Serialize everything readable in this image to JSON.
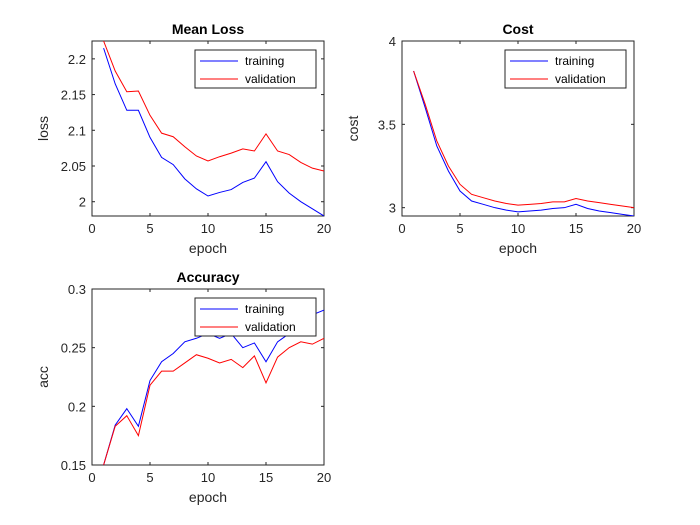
{
  "chart_data": [
    {
      "type": "line",
      "title": "Mean Loss",
      "xlabel": "epoch",
      "ylabel": "loss",
      "xlim": [
        0,
        20
      ],
      "ylim": [
        1.98,
        2.225
      ],
      "xticks": [
        0,
        5,
        10,
        15,
        20
      ],
      "yticks": [
        2,
        2.05,
        2.1,
        2.15,
        2.2
      ],
      "ytick_labels": [
        "2",
        "2.05",
        "2.1",
        "2.15",
        "2.2"
      ],
      "legend_position": "top-right",
      "x": [
        1,
        2,
        3,
        4,
        5,
        6,
        7,
        8,
        9,
        10,
        11,
        12,
        13,
        14,
        15,
        16,
        17,
        18,
        19,
        20
      ],
      "series": [
        {
          "name": "training",
          "color": "#0000ff",
          "values": [
            2.215,
            2.165,
            2.128,
            2.128,
            2.09,
            2.062,
            2.052,
            2.032,
            2.018,
            2.008,
            2.013,
            2.017,
            2.027,
            2.033,
            2.056,
            2.028,
            2.012,
            2.0,
            1.99,
            1.98
          ]
        },
        {
          "name": "validation",
          "color": "#ff0000",
          "values": [
            2.225,
            2.183,
            2.154,
            2.155,
            2.121,
            2.096,
            2.091,
            2.077,
            2.064,
            2.057,
            2.063,
            2.068,
            2.074,
            2.071,
            2.095,
            2.071,
            2.066,
            2.055,
            2.047,
            2.043
          ]
        }
      ]
    },
    {
      "type": "line",
      "title": "Cost",
      "xlabel": "epoch",
      "ylabel": "cost",
      "xlim": [
        0,
        20
      ],
      "ylim": [
        2.95,
        4.0
      ],
      "xticks": [
        0,
        5,
        10,
        15,
        20
      ],
      "yticks": [
        3,
        3.5,
        4
      ],
      "ytick_labels": [
        "3",
        "3.5",
        "4"
      ],
      "legend_position": "top-right",
      "x": [
        1,
        2,
        3,
        4,
        5,
        6,
        7,
        8,
        9,
        10,
        11,
        12,
        13,
        14,
        15,
        16,
        17,
        18,
        19,
        20
      ],
      "series": [
        {
          "name": "training",
          "color": "#0000ff",
          "values": [
            3.82,
            3.6,
            3.37,
            3.22,
            3.1,
            3.04,
            3.02,
            3.0,
            2.985,
            2.975,
            2.98,
            2.985,
            2.995,
            3.0,
            3.02,
            2.995,
            2.98,
            2.97,
            2.96,
            2.95
          ]
        },
        {
          "name": "validation",
          "color": "#ff0000",
          "values": [
            3.82,
            3.62,
            3.4,
            3.25,
            3.14,
            3.08,
            3.06,
            3.04,
            3.025,
            3.015,
            3.02,
            3.025,
            3.035,
            3.035,
            3.055,
            3.04,
            3.03,
            3.02,
            3.01,
            3.0
          ]
        }
      ]
    },
    {
      "type": "line",
      "title": "Accuracy",
      "xlabel": "epoch",
      "ylabel": "acc",
      "xlim": [
        0,
        20
      ],
      "ylim": [
        0.15,
        0.3
      ],
      "xticks": [
        0,
        5,
        10,
        15,
        20
      ],
      "yticks": [
        0.15,
        0.2,
        0.25,
        0.3
      ],
      "ytick_labels": [
        "0.15",
        "0.2",
        "0.25",
        "0.3"
      ],
      "legend_position": "top-right",
      "x": [
        1,
        2,
        3,
        4,
        5,
        6,
        7,
        8,
        9,
        10,
        11,
        12,
        13,
        14,
        15,
        16,
        17,
        18,
        19,
        20
      ],
      "series": [
        {
          "name": "training",
          "color": "#0000ff",
          "values": [
            0.15,
            0.184,
            0.198,
            0.183,
            0.222,
            0.238,
            0.245,
            0.255,
            0.258,
            0.262,
            0.258,
            0.262,
            0.25,
            0.254,
            0.238,
            0.255,
            0.262,
            0.27,
            0.278,
            0.282
          ]
        },
        {
          "name": "validation",
          "color": "#ff0000",
          "values": [
            0.15,
            0.183,
            0.192,
            0.175,
            0.218,
            0.23,
            0.23,
            0.237,
            0.244,
            0.241,
            0.237,
            0.24,
            0.233,
            0.243,
            0.22,
            0.242,
            0.25,
            0.255,
            0.253,
            0.258
          ]
        }
      ]
    }
  ]
}
